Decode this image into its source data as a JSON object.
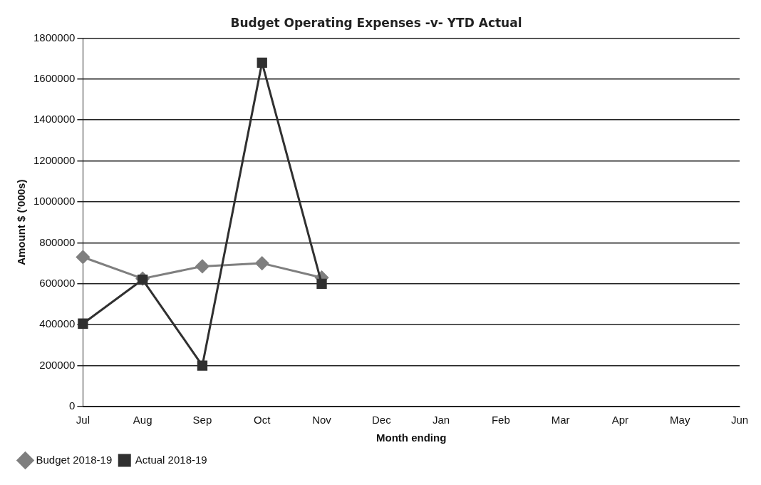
{
  "chart_data": {
    "type": "line",
    "title": "Budget Operating Expenses -v- YTD Actual",
    "xlabel": "Month ending",
    "ylabel": "Amount $ ('000s)",
    "categories": [
      "Jul",
      "Aug",
      "Sep",
      "Oct",
      "Nov",
      "Dec",
      "Jan",
      "Feb",
      "Mar",
      "Apr",
      "May",
      "Jun"
    ],
    "series": [
      {
        "name": "Budget 2018-19",
        "color": "#7f7f7f",
        "marker": "diamond",
        "values": [
          730000,
          625000,
          685000,
          700000,
          630000,
          null,
          null,
          null,
          null,
          null,
          null,
          null
        ]
      },
      {
        "name": "Actual 2018-19",
        "color": "#303030",
        "marker": "square",
        "values": [
          405000,
          620000,
          200000,
          1680000,
          600000,
          null,
          null,
          null,
          null,
          null,
          null,
          null
        ]
      }
    ],
    "ylim": [
      0,
      1800000
    ],
    "yticks": [
      0,
      200000,
      400000,
      600000,
      800000,
      1000000,
      1200000,
      1400000,
      1600000,
      1800000
    ],
    "grid": "y",
    "legend": "bottom left",
    "line_style": "solid"
  }
}
